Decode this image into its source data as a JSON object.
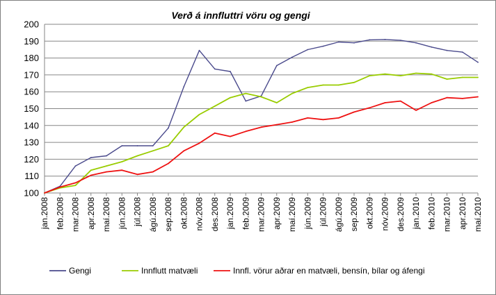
{
  "chart_data": {
    "type": "line",
    "title": "Verð á innfluttri vöru og gengi",
    "xlabel": "",
    "ylabel": "",
    "ylim": [
      100,
      200
    ],
    "yticks": [
      100,
      110,
      120,
      130,
      140,
      150,
      160,
      170,
      180,
      190,
      200
    ],
    "grid": true,
    "legend_position": "bottom",
    "categories": [
      "jan.2008",
      "feb.2008",
      "mar.2008",
      "apr.2008",
      "maí.2008",
      "jún.2008",
      "júl.2008",
      "ágú.2008",
      "sep.2008",
      "okt.2008",
      "nóv.2008",
      "des.2008",
      "jan.2009",
      "feb.2009",
      "mar.2009",
      "apr.2009",
      "maí.2009",
      "jún.2009",
      "júl.2009",
      "ágú.2009",
      "sep.2009",
      "okt.2009",
      "nóv.2009",
      "des.2009",
      "jan.2010",
      "feb.2010",
      "mar.2010",
      "apr.2010",
      "maí.2010"
    ],
    "series": [
      {
        "name": "Gengi",
        "color": "#4a4a8c",
        "values": [
          100,
          104,
          116,
          121,
          122,
          128,
          128,
          128,
          138.5,
          163,
          184.5,
          173.5,
          172,
          154.5,
          157.5,
          175.5,
          180.5,
          185,
          187,
          189.5,
          189,
          190.8,
          191,
          190.5,
          189,
          186.5,
          184.5,
          183.5,
          177.5
        ]
      },
      {
        "name": "Innflutt matvæli",
        "color": "#99cc00",
        "values": [
          100,
          103,
          104.5,
          113.5,
          116,
          118.5,
          122,
          125,
          128,
          139,
          146.5,
          151.5,
          156.5,
          159,
          157,
          153.5,
          159,
          162.5,
          164,
          164,
          165.5,
          169.5,
          170.5,
          169.5,
          171,
          170.5,
          167.5,
          168.5,
          168.5
        ]
      },
      {
        "name": "Innfl. vörur aðrar en matvæli, bensín, bílar og áfengi",
        "color": "#ee1111",
        "values": [
          100,
          103.5,
          106,
          110.5,
          112.5,
          113.5,
          111,
          112.5,
          117.5,
          125,
          129.5,
          135.5,
          133.5,
          136.5,
          139,
          140.5,
          142,
          144.5,
          143.5,
          144.5,
          148,
          150.5,
          153.5,
          154.5,
          149,
          153.5,
          156.5,
          156,
          157
        ]
      }
    ]
  }
}
